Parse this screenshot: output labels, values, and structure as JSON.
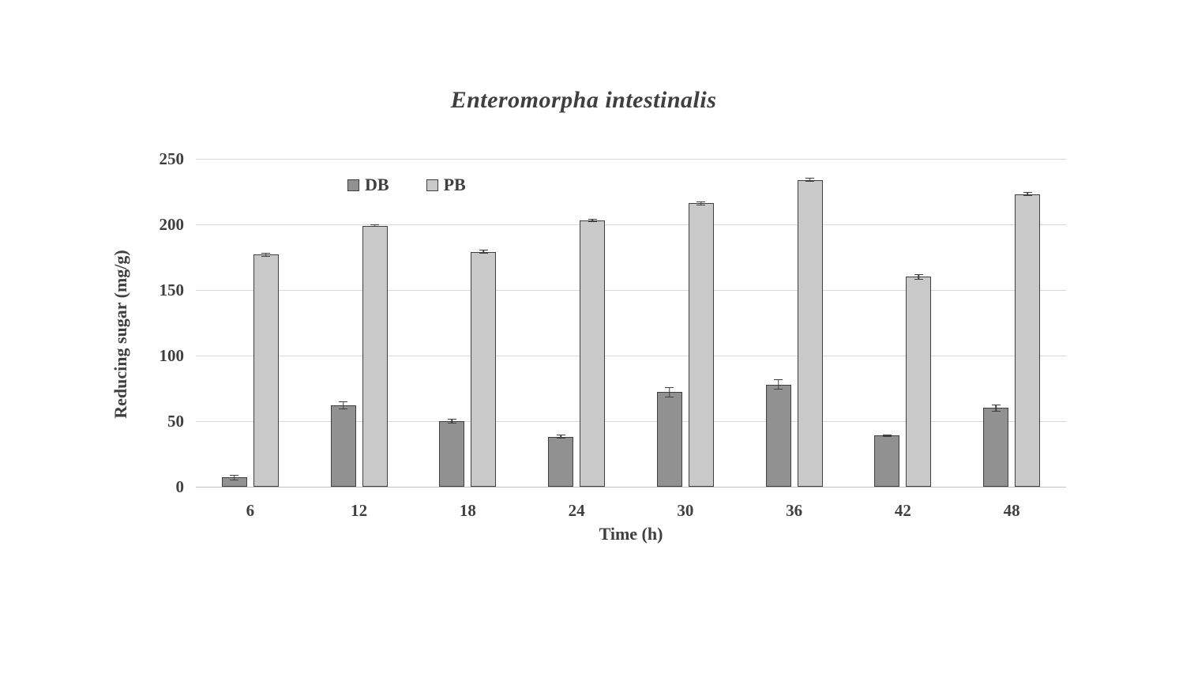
{
  "chart_data": {
    "type": "bar",
    "title": "Enteromorpha intestinalis",
    "xlabel": "Time (h)",
    "ylabel": "Reducing sugar (mg/g)",
    "categories": [
      "6",
      "12",
      "18",
      "24",
      "30",
      "36",
      "42",
      "48"
    ],
    "y_ticks": [
      0,
      50,
      100,
      150,
      200,
      250
    ],
    "ylim": [
      0,
      250
    ],
    "grid": true,
    "legend_position": "inside-top-left",
    "series": [
      {
        "name": "DB",
        "color": "#919191",
        "values": [
          7,
          62,
          50,
          38,
          72,
          78,
          39,
          60
        ],
        "errors": [
          2,
          3,
          2,
          1.5,
          4,
          4,
          1,
          2.5
        ]
      },
      {
        "name": "PB",
        "color": "#c9c9c9",
        "values": [
          177,
          199,
          179,
          203,
          216,
          234,
          160,
          223
        ],
        "errors": [
          1.5,
          1,
          1.5,
          1,
          1.5,
          1.5,
          2,
          1.5
        ]
      }
    ]
  },
  "colors": {
    "bar_outline": "#3f3f3f",
    "gridline": "#d9d9d9",
    "axis_line": "#bfbfbf",
    "text": "#3f3f3f",
    "error_bar": "#404040"
  }
}
